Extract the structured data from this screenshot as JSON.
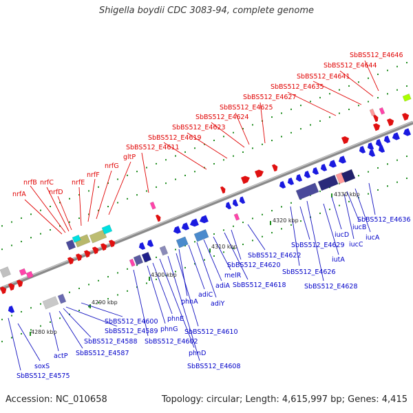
{
  "title": "Shigella boydii CDC 3083-94, complete genome",
  "footer": {
    "accession": "Accession: NC_010658",
    "topology": "Topology: circular; Length: 4,615,997 bp; Genes: 4,415"
  },
  "colors": {
    "forward_label": "#e00000",
    "reverse_label": "#0000c8",
    "backbone": "#888888",
    "tick": "#1a7a1a"
  },
  "scale": [
    {
      "text": "4280 kbp"
    },
    {
      "text": "4290 kbp"
    },
    {
      "text": "4300 kbp"
    },
    {
      "text": "4310 kbp"
    },
    {
      "text": "4320 kbp"
    },
    {
      "text": "4330 kbp"
    }
  ],
  "top_labels": [
    {
      "text": "nrfA"
    },
    {
      "text": "nrfB"
    },
    {
      "text": "nrfC"
    },
    {
      "text": "nrfD"
    },
    {
      "text": "nrfE"
    },
    {
      "text": "nrfF"
    },
    {
      "text": "nrfG"
    },
    {
      "text": "gltP"
    },
    {
      "text": "SbBS512_E4611"
    },
    {
      "text": "SbBS512_E4619"
    },
    {
      "text": "SbBS512_E4623"
    },
    {
      "text": "SbBS512_E4624"
    },
    {
      "text": "SbBS512_E4625"
    },
    {
      "text": "SbBS512_E4627"
    },
    {
      "text": "SbBS512_E4635"
    },
    {
      "text": "SbBS512_E4641"
    },
    {
      "text": "SbBS512_E4644"
    },
    {
      "text": "SbBS512_E4646"
    }
  ],
  "bottom_labels": [
    {
      "text": "SbBS512_E4575"
    },
    {
      "text": "soxS"
    },
    {
      "text": "actP"
    },
    {
      "text": "SbBS512_E4587"
    },
    {
      "text": "SbBS512_E4588"
    },
    {
      "text": "SbBS512_E4589"
    },
    {
      "text": "SbBS512_E4600"
    },
    {
      "text": "SbBS512_E4602"
    },
    {
      "text": "phnG"
    },
    {
      "text": "phnE"
    },
    {
      "text": "phnD"
    },
    {
      "text": "SbBS512_E4608"
    },
    {
      "text": "SbBS512_E4610"
    },
    {
      "text": "phnA"
    },
    {
      "text": "adiC"
    },
    {
      "text": "adiY"
    },
    {
      "text": "adiA"
    },
    {
      "text": "melR"
    },
    {
      "text": "SbBS512_E4618"
    },
    {
      "text": "SbBS512_E4620"
    },
    {
      "text": "SbBS512_E4622"
    },
    {
      "text": "SbBS512_E4626"
    },
    {
      "text": "SbBS512_E4628"
    },
    {
      "text": "SbBS512_E4629"
    },
    {
      "text": "iutA"
    },
    {
      "text": "iucD"
    },
    {
      "text": "iucC"
    },
    {
      "text": "iucB"
    },
    {
      "text": "iucA"
    },
    {
      "text": "SbBS512_E4636"
    }
  ]
}
